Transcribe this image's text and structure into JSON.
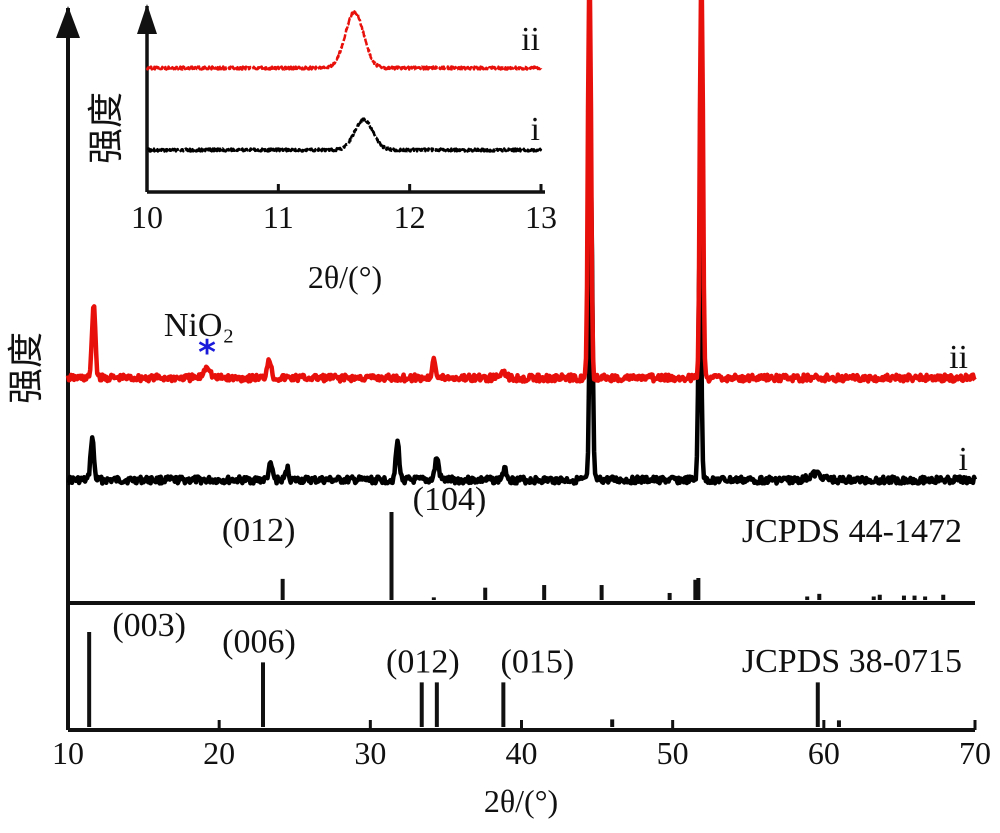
{
  "chart_data": [
    {
      "type": "line",
      "title": "",
      "xlabel": "2θ/(°)",
      "ylabel": "强度",
      "xlim": [
        10,
        70
      ],
      "xticks": [
        "10",
        "20",
        "30",
        "40",
        "50",
        "60",
        "70"
      ],
      "series": [
        {
          "name": "i",
          "color": "#000000",
          "baseline": 480,
          "peaks": [
            {
              "x": 11.6,
              "h": 42,
              "w": 0.22
            },
            {
              "x": 23.4,
              "h": 15,
              "w": 0.25
            },
            {
              "x": 24.5,
              "h": 12,
              "w": 0.2
            },
            {
              "x": 31.8,
              "h": 38,
              "w": 0.22
            },
            {
              "x": 34.4,
              "h": 22,
              "w": 0.25
            },
            {
              "x": 38.9,
              "h": 10,
              "w": 0.3
            },
            {
              "x": 44.6,
              "h": 300,
              "w": 0.18
            },
            {
              "x": 51.8,
              "h": 250,
              "w": 0.18
            },
            {
              "x": 59.5,
              "h": 6,
              "w": 0.8
            }
          ]
        },
        {
          "name": "ii",
          "color": "#e8100b",
          "baseline": 378,
          "peaks": [
            {
              "x": 11.7,
              "h": 75,
              "w": 0.22
            },
            {
              "x": 19.2,
              "h": 12,
              "w": 0.4
            },
            {
              "x": 23.3,
              "h": 20,
              "w": 0.25
            },
            {
              "x": 34.2,
              "h": 22,
              "w": 0.2
            },
            {
              "x": 38.8,
              "h": 8,
              "w": 0.3
            },
            {
              "x": 44.5,
              "h": 500,
              "w": 0.18
            },
            {
              "x": 51.9,
              "h": 500,
              "w": 0.18
            }
          ]
        }
      ],
      "reference_patterns": [
        {
          "name": "JCPDS 44-1472",
          "sticks": [
            {
              "x": 24.2,
              "h": 0.24,
              "label": "(012)"
            },
            {
              "x": 31.4,
              "h": 1.0,
              "label": "(104)"
            },
            {
              "x": 34.2,
              "h": 0.03
            },
            {
              "x": 37.6,
              "h": 0.14
            },
            {
              "x": 41.5,
              "h": 0.17
            },
            {
              "x": 45.3,
              "h": 0.17
            },
            {
              "x": 49.8,
              "h": 0.08
            },
            {
              "x": 51.5,
              "h": 0.23
            },
            {
              "x": 51.7,
              "h": 0.25
            },
            {
              "x": 58.9,
              "h": 0.04
            },
            {
              "x": 59.7,
              "h": 0.07
            },
            {
              "x": 63.3,
              "h": 0.04
            },
            {
              "x": 63.7,
              "h": 0.06
            },
            {
              "x": 65.3,
              "h": 0.05
            },
            {
              "x": 66.0,
              "h": 0.05
            },
            {
              "x": 66.7,
              "h": 0.04
            },
            {
              "x": 67.9,
              "h": 0.06
            }
          ]
        },
        {
          "name": "JCPDS 38-0715",
          "sticks": [
            {
              "x": 11.4,
              "h": 1.0,
              "label": "(003)"
            },
            {
              "x": 22.9,
              "h": 0.68,
              "label": "(006)"
            },
            {
              "x": 33.4,
              "h": 0.47
            },
            {
              "x": 34.4,
              "h": 0.47,
              "label": "(012)"
            },
            {
              "x": 38.8,
              "h": 0.47,
              "label": "(015)"
            },
            {
              "x": 46.0,
              "h": 0.08
            },
            {
              "x": 59.6,
              "h": 0.47
            },
            {
              "x": 61.0,
              "h": 0.07
            }
          ]
        }
      ],
      "annotations": [
        {
          "text": "NiO₂",
          "marker": "*",
          "marker_color": "#1a1adb",
          "x": 19.2
        }
      ]
    },
    {
      "type": "line",
      "title": "",
      "xlabel": "2θ/(°)",
      "ylabel": "强度",
      "xlim": [
        10,
        13
      ],
      "xticks": [
        "10",
        "11",
        "12",
        "13"
      ],
      "series": [
        {
          "name": "i",
          "color": "#000000",
          "baseline": 150,
          "peaks": [
            {
              "x": 11.65,
              "h": 30,
              "w": 0.14
            }
          ]
        },
        {
          "name": "ii",
          "color": "#e8100b",
          "baseline": 68,
          "peaks": [
            {
              "x": 11.58,
              "h": 56,
              "w": 0.14
            }
          ]
        }
      ]
    }
  ]
}
